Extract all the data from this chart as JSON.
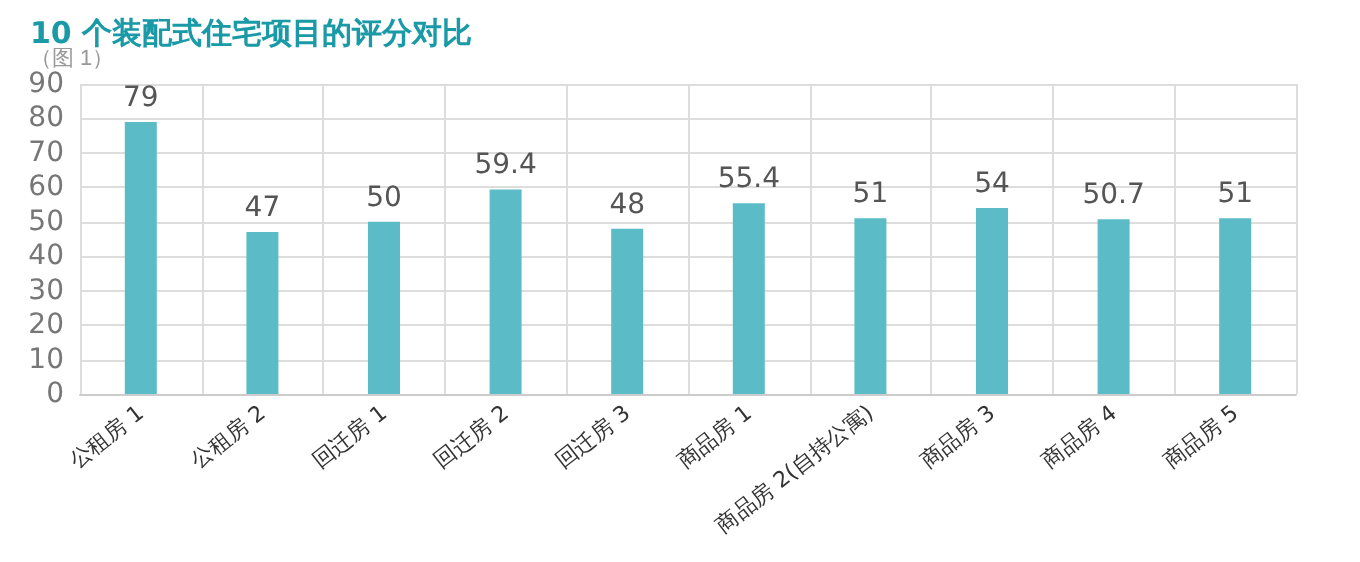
{
  "chart_data": {
    "type": "bar",
    "title": "10 个装配式住宅项目的评分对比",
    "subtitle": "（图 1）",
    "categories": [
      "公租房 1",
      "公租房 2",
      "回迁房 1",
      "回迁房 2",
      "回迁房 3",
      "商品房 1",
      "商品房 2(自持公寓)",
      "商品房 3",
      "商品房 4",
      "商品房 5"
    ],
    "values": [
      79,
      47,
      50,
      59.4,
      48,
      55.4,
      51,
      54,
      50.7,
      51
    ],
    "color": "#5bbcc8",
    "ylim": [
      0,
      90
    ],
    "yticks": [
      0,
      10,
      20,
      30,
      40,
      50,
      60,
      70,
      80,
      90
    ],
    "grid": true,
    "data_labels": true
  }
}
